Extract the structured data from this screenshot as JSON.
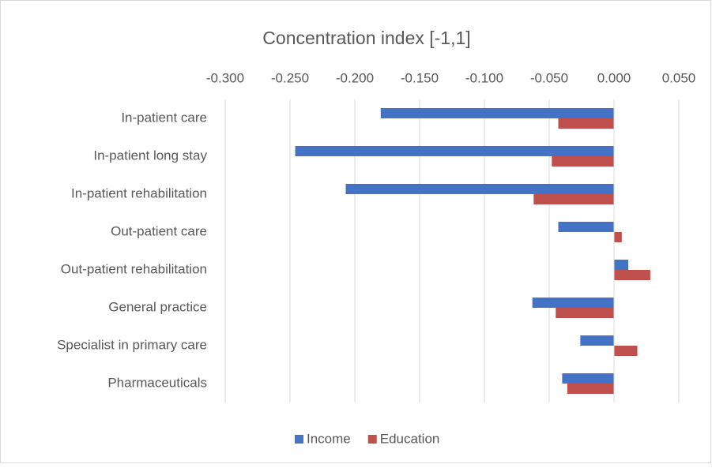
{
  "chart_data": {
    "type": "barh",
    "title": "Concentration index [-1,1]",
    "categories": [
      "In-patient care",
      "In-patient long stay",
      "In-patient rehabilitation",
      "Out-patient care",
      "Out-patient rehabilitation",
      "General practice",
      "Specialist in primary care",
      "Pharmaceuticals"
    ],
    "series": [
      {
        "name": "Income",
        "color": "#4472c4",
        "values": [
          -0.18,
          -0.246,
          -0.207,
          -0.043,
          0.011,
          -0.063,
          -0.026,
          -0.04
        ]
      },
      {
        "name": "Education",
        "color": "#c0504d",
        "values": [
          -0.043,
          -0.048,
          -0.062,
          0.006,
          0.028,
          -0.045,
          0.018,
          -0.036
        ]
      }
    ],
    "xlim": [
      -0.3,
      0.05
    ],
    "xticks": [
      {
        "value": -0.3,
        "label": "-0.300"
      },
      {
        "value": -0.25,
        "label": "-0.250"
      },
      {
        "value": -0.2,
        "label": "-0.200"
      },
      {
        "value": -0.15,
        "label": "-0.150"
      },
      {
        "value": -0.1,
        "label": "-0.100"
      },
      {
        "value": -0.05,
        "label": "-0.050"
      },
      {
        "value": 0,
        "label": "0.000"
      },
      {
        "value": 0.05,
        "label": "0.050"
      }
    ],
    "grid": true,
    "legend": "bottom"
  }
}
